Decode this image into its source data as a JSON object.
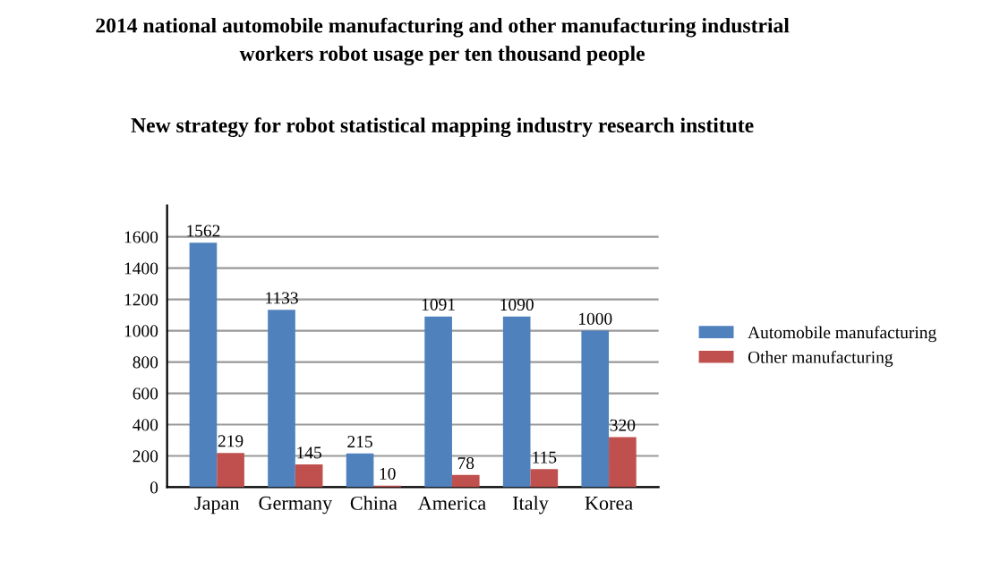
{
  "chart_data": {
    "type": "bar",
    "title": "2014 national automobile manufacturing and other manufacturing industrial\nworkers robot usage per ten thousand people",
    "subtitle": "New strategy for robot statistical mapping industry research institute",
    "categories": [
      "Japan",
      "Germany",
      "China",
      "America",
      "Italy",
      "Korea"
    ],
    "series": [
      {
        "name": "Automobile manufacturing",
        "color": "#4f81bd",
        "values": [
          1562,
          1133,
          215,
          1091,
          1090,
          1000
        ]
      },
      {
        "name": "Other manufacturing",
        "color": "#c0504d",
        "values": [
          219,
          145,
          10,
          78,
          115,
          320
        ]
      }
    ],
    "ylim": [
      0,
      1800
    ],
    "yticks": [
      0,
      200,
      400,
      600,
      800,
      1000,
      1200,
      1400,
      1600
    ],
    "grid": "y",
    "legend": "right",
    "data_labels": true
  }
}
